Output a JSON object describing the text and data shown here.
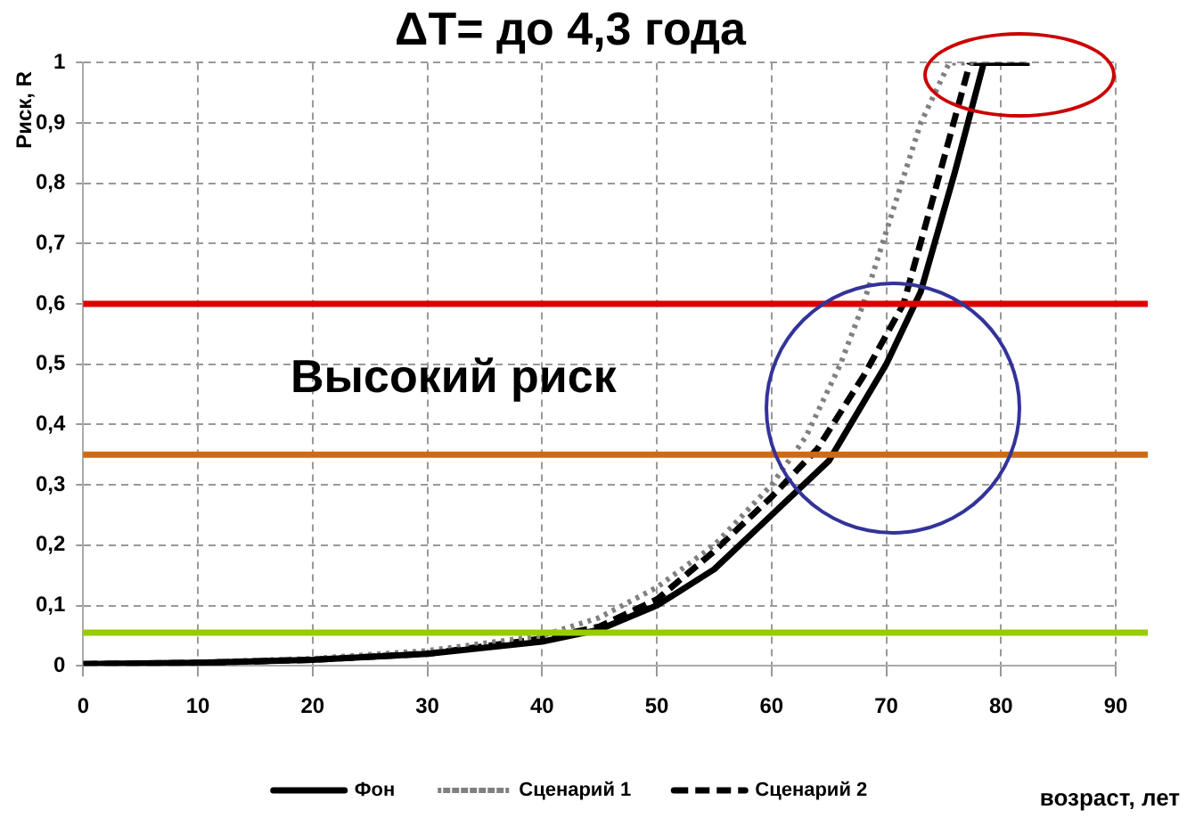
{
  "chart_data": {
    "type": "line",
    "title": "ΔT= до 4,3 года",
    "xlabel": "возраст, лет",
    "ylabel": "Риск, R",
    "annotations": [
      "Высокий риск"
    ],
    "xlim": [
      0,
      90
    ],
    "xticks": [
      0,
      10,
      20,
      30,
      40,
      50,
      60,
      70,
      80,
      90
    ],
    "ylim": [
      0,
      1
    ],
    "yticks": [
      0,
      {
        "value": 0.1,
        "label": "0,1"
      },
      {
        "value": 0.2,
        "label": "0,2"
      },
      {
        "value": 0.3,
        "label": "0,3"
      },
      {
        "value": 0.4,
        "label": "0,4"
      },
      {
        "value": 0.5,
        "label": "0,5"
      },
      {
        "value": 0.6,
        "label": "0,6"
      },
      {
        "value": 0.7,
        "label": "0,7"
      },
      {
        "value": 0.8,
        "label": "0,8"
      },
      {
        "value": 0.9,
        "label": "0,9"
      },
      1
    ],
    "grid": true,
    "legend": "bottom",
    "marker": "none",
    "series": [
      {
        "name": "Фон",
        "color": "#000000",
        "line_style": "solid",
        "x": [
          0,
          10,
          20,
          30,
          40,
          45,
          50,
          55,
          60,
          65,
          70,
          73,
          76,
          78.5,
          82.5
        ],
        "values": [
          0.003,
          0.005,
          0.01,
          0.02,
          0.04,
          0.06,
          0.1,
          0.16,
          0.25,
          0.34,
          0.5,
          0.62,
          0.82,
          1,
          1
        ]
      },
      {
        "name": "Сценарий 1",
        "color": "#808080",
        "line_style": "dotted",
        "x": [
          0,
          10,
          20,
          30,
          40,
          45,
          50,
          55,
          60,
          63,
          66,
          68,
          71,
          73,
          75.5,
          78
        ],
        "values": [
          0.003,
          0.006,
          0.012,
          0.025,
          0.05,
          0.08,
          0.13,
          0.2,
          0.3,
          0.38,
          0.5,
          0.6,
          0.78,
          0.9,
          1,
          1
        ]
      },
      {
        "name": "Сценарий 2",
        "color": "#000000",
        "line_style": "dashed",
        "x": [
          0,
          10,
          20,
          30,
          40,
          45,
          50,
          55,
          60,
          64,
          68,
          71.5,
          74,
          77.3,
          82
        ],
        "values": [
          0.003,
          0.005,
          0.01,
          0.02,
          0.045,
          0.065,
          0.11,
          0.19,
          0.28,
          0.36,
          0.48,
          0.6,
          0.77,
          1,
          1
        ]
      }
    ],
    "ref_lines": [
      {
        "axis": "y",
        "value": 0.6,
        "color": "#dd0000"
      },
      {
        "axis": "y",
        "value": 0.35,
        "color": "#d06a10"
      },
      {
        "axis": "y",
        "value": 0.055,
        "color": "#99cc00"
      }
    ]
  }
}
